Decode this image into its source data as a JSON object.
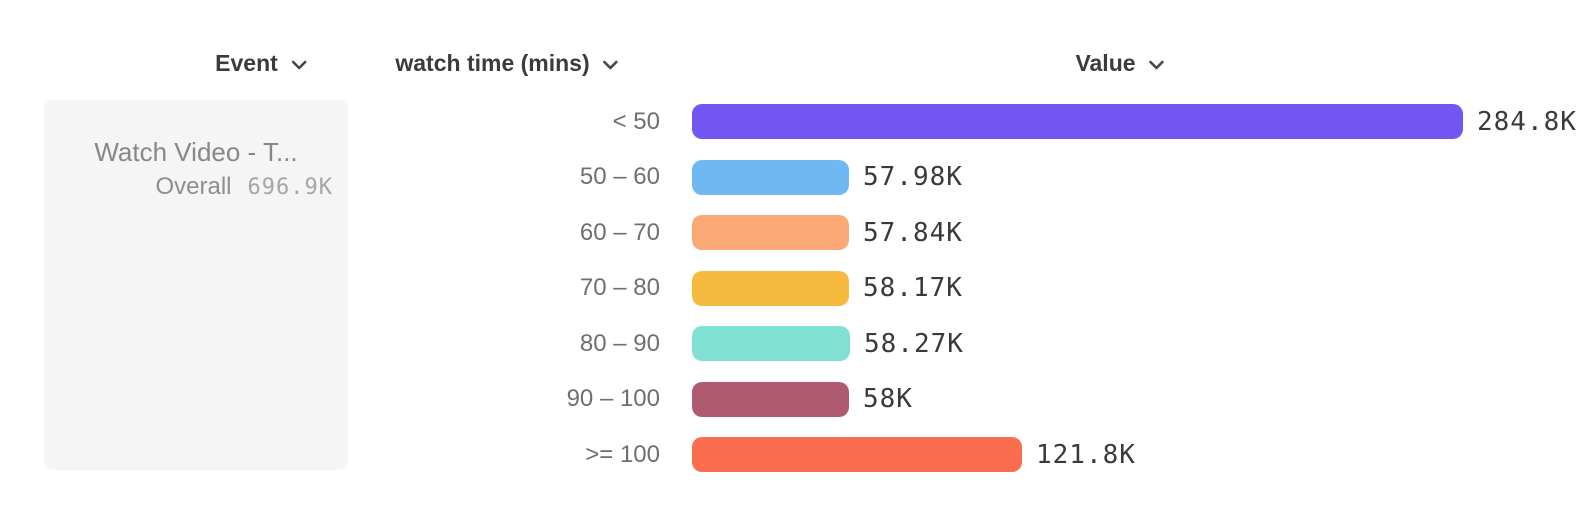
{
  "header": {
    "columns": [
      {
        "label": "Event"
      },
      {
        "label": "watch time (mins)"
      },
      {
        "label": "Value"
      }
    ]
  },
  "event_card": {
    "title": "Watch Video - T...",
    "overall_label": "Overall",
    "overall_value": "696.9K"
  },
  "chart_data": {
    "type": "bar",
    "orientation": "horizontal",
    "categories": [
      "< 50",
      "50 – 60",
      "60 – 70",
      "70 – 80",
      "80 – 90",
      "90 – 100",
      ">= 100"
    ],
    "values": [
      284800,
      57980,
      57840,
      58170,
      58270,
      58000,
      121800
    ],
    "value_labels": [
      "284.8K",
      "57.98K",
      "57.84K",
      "58.17K",
      "58.27K",
      "58K",
      "121.8K"
    ],
    "bar_colors": [
      "#7355F2",
      "#6FB9F2",
      "#FBA974",
      "#F6BA3E",
      "#80E1D3",
      "#B05A72",
      "#FB6D4F"
    ],
    "series_name": "watch time (mins)",
    "legend": false,
    "grid": false,
    "value_axis_range": [
      0,
      284800
    ]
  },
  "colors": {
    "header_text": "#3B3B3F",
    "row_label_text": "#6E6E73",
    "value_text": "#3A3A3E",
    "card_background": "#F5F5F6"
  }
}
